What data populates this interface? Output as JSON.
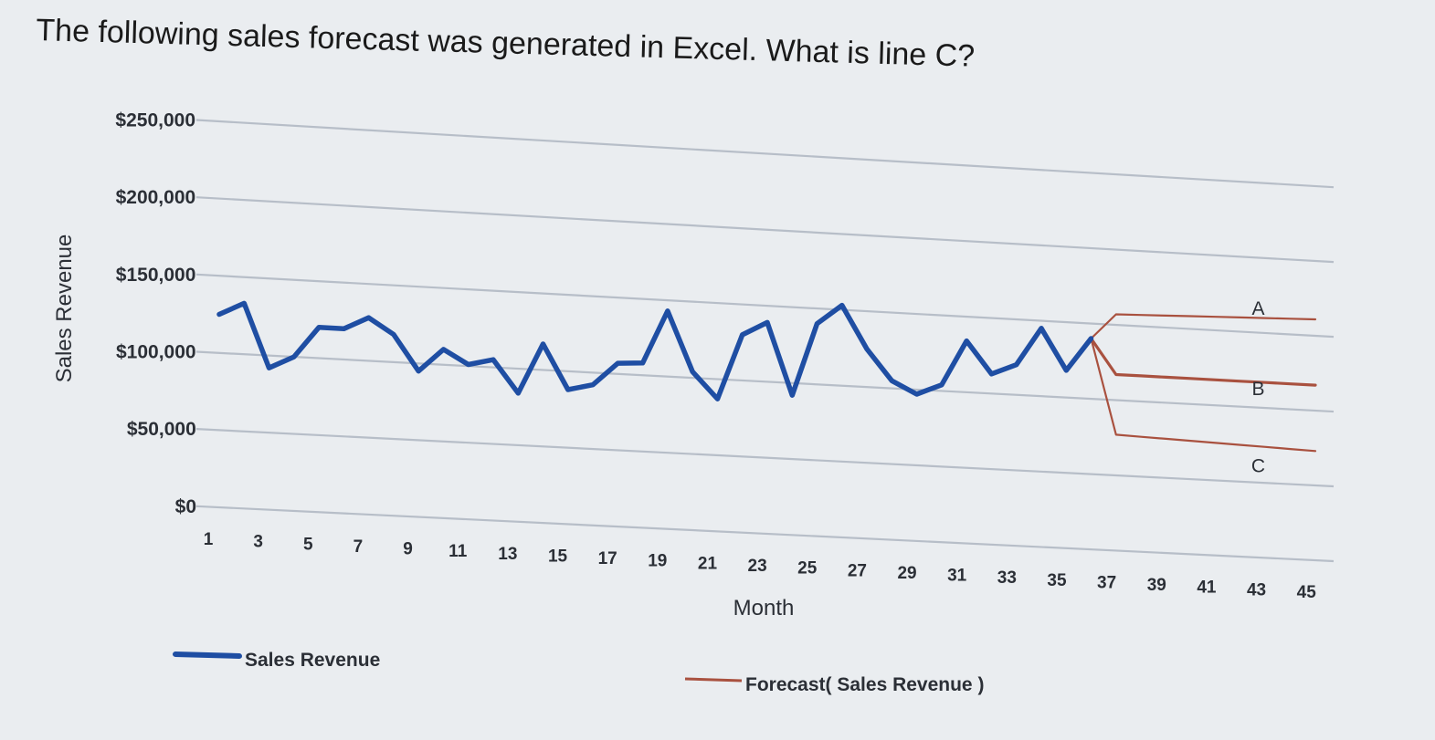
{
  "question": "The following sales forecast was generated in Excel. What is line C?",
  "colors": {
    "sales": "#1f4ea3",
    "forecast": "#a9513f",
    "grid": "#b7bec8",
    "text": "#2b2f36"
  },
  "chart_data": {
    "type": "line",
    "xlabel": "Month",
    "ylabel": "Sales Revenue",
    "ylim": [
      0,
      250000
    ],
    "y_ticks": [
      0,
      50000,
      100000,
      150000,
      200000,
      250000
    ],
    "y_tick_labels": [
      "$0",
      "$50,000",
      "$100,000",
      "$150,000",
      "$200,000",
      "$250,000"
    ],
    "x_ticks": [
      1,
      3,
      5,
      7,
      9,
      11,
      13,
      15,
      17,
      19,
      21,
      23,
      25,
      27,
      29,
      31,
      33,
      35,
      37,
      39,
      41,
      43,
      45
    ],
    "x_tick_labels": [
      "1",
      "3",
      "5",
      "7",
      "9",
      "11",
      "13",
      "15",
      "17",
      "19",
      "21",
      "23",
      "25",
      "27",
      "29",
      "31",
      "33",
      "35",
      "37",
      "39",
      "41",
      "43",
      "45"
    ],
    "grid": true,
    "legend_position": "bottom",
    "series": [
      {
        "name": "Sales Revenue",
        "x": [
          1,
          2,
          3,
          4,
          5,
          6,
          7,
          8,
          9,
          10,
          11,
          12,
          13,
          14,
          15,
          16,
          17,
          18,
          19,
          20,
          21,
          22,
          23,
          24,
          25,
          26,
          27,
          28,
          29,
          30,
          31,
          32,
          33,
          34,
          35,
          36
        ],
        "y": [
          125000,
          133000,
          92000,
          100000,
          120000,
          120000,
          128000,
          118000,
          95000,
          110000,
          101000,
          105000,
          84000,
          117000,
          88000,
          92000,
          107000,
          108000,
          143000,
          104000,
          87000,
          130000,
          139000,
          92000,
          140000,
          153000,
          125000,
          105000,
          97000,
          104000,
          134000,
          113000,
          120000,
          145000,
          118000,
          140000
        ]
      },
      {
        "name": "Forecast( Sales Revenue )",
        "x": [
          36,
          37,
          38,
          39,
          40,
          41,
          42,
          43,
          44,
          45
        ],
        "y": [
          140000,
          117000,
          117000,
          117000,
          117000,
          117000,
          117000,
          117000,
          117000,
          117000
        ]
      },
      {
        "x": [
          36,
          37,
          38,
          39,
          40,
          41,
          42,
          43,
          44,
          45
        ],
        "y": [
          140000,
          157000,
          157500,
          158000,
          158500,
          159000,
          159500,
          160000,
          160500,
          161000
        ]
      },
      {
        "x": [
          36,
          37,
          38,
          39,
          40,
          41,
          42,
          43,
          44,
          45
        ],
        "y": [
          140000,
          77000,
          76500,
          76000,
          75500,
          75000,
          74500,
          74000,
          73500,
          73000
        ]
      }
    ],
    "annotations": [
      {
        "label": "A",
        "x": 43,
        "y": 161000
      },
      {
        "label": "B",
        "x": 43,
        "y": 117000
      },
      {
        "label": "C",
        "x": 43,
        "y": 73000
      }
    ]
  }
}
